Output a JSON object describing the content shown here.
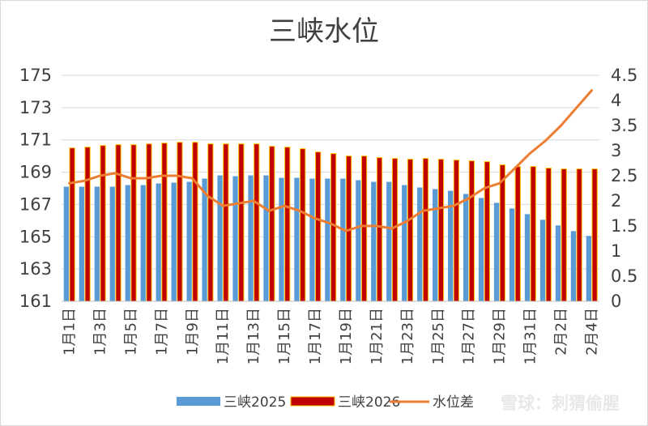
{
  "chart_data": {
    "type": "bar",
    "title": "三峡水位",
    "categories": [
      "1月1日",
      "1月2日",
      "1月3日",
      "1月4日",
      "1月5日",
      "1月6日",
      "1月7日",
      "1月8日",
      "1月9日",
      "1月10日",
      "1月11日",
      "1月12日",
      "1月13日",
      "1月14日",
      "1月15日",
      "1月16日",
      "1月17日",
      "1月18日",
      "1月19日",
      "1月20日",
      "1月21日",
      "1月22日",
      "1月23日",
      "1月24日",
      "1月25日",
      "1月26日",
      "1月27日",
      "1月28日",
      "1月29日",
      "1月30日",
      "1月31日",
      "2月1日",
      "2月2日",
      "2月3日",
      "2月4日"
    ],
    "tick_labels": [
      "1月1日",
      "1月3日",
      "1月5日",
      "1月7日",
      "1月9日",
      "1月11日",
      "1月13日",
      "1月15日",
      "1月17日",
      "1月19日",
      "1月21日",
      "1月23日",
      "1月25日",
      "1月27日",
      "1月29日",
      "1月31日",
      "2月2日",
      "2月4日"
    ],
    "y_left": {
      "ylim": [
        161,
        175
      ],
      "ticks": [
        "161",
        "163",
        "165",
        "167",
        "169",
        "171",
        "173",
        "175"
      ]
    },
    "y_right": {
      "ylim": [
        0,
        4.5
      ],
      "ticks": [
        "0",
        "0.5",
        "1",
        "1.5",
        "2",
        "2.5",
        "3",
        "3.5",
        "4",
        "4.5"
      ]
    },
    "grid": true,
    "legend_position": "bottom",
    "series": [
      {
        "name": "三峡2025",
        "kind": "bar",
        "axis": "left",
        "color": "#5b9bd5",
        "values": [
          168.1,
          168.1,
          168.1,
          168.1,
          168.2,
          168.2,
          168.3,
          168.35,
          168.4,
          168.6,
          168.8,
          168.75,
          168.8,
          168.8,
          168.65,
          168.65,
          168.6,
          168.6,
          168.6,
          168.5,
          168.4,
          168.4,
          168.2,
          168.05,
          167.95,
          167.85,
          167.65,
          167.4,
          167.1,
          166.75,
          166.4,
          166.05,
          165.7,
          165.35,
          165.05
        ]
      },
      {
        "name": "三峡2026",
        "kind": "bar",
        "axis": "left",
        "color": "#c00000",
        "edge": "#ffc000",
        "values": [
          170.5,
          170.55,
          170.65,
          170.7,
          170.7,
          170.75,
          170.8,
          170.85,
          170.85,
          170.75,
          170.75,
          170.75,
          170.75,
          170.6,
          170.55,
          170.45,
          170.25,
          170.15,
          170.0,
          170.0,
          169.9,
          169.85,
          169.8,
          169.85,
          169.8,
          169.75,
          169.7,
          169.65,
          169.45,
          169.35,
          169.35,
          169.25,
          169.2,
          169.2,
          169.2
        ]
      },
      {
        "name": "水位差",
        "kind": "line",
        "axis": "right",
        "color": "#ed7d31",
        "values": [
          2.35,
          2.4,
          2.5,
          2.55,
          2.45,
          2.45,
          2.5,
          2.5,
          2.45,
          2.1,
          1.9,
          1.95,
          2.0,
          1.8,
          1.9,
          1.8,
          1.65,
          1.55,
          1.4,
          1.5,
          1.5,
          1.45,
          1.6,
          1.8,
          1.85,
          1.9,
          2.05,
          2.25,
          2.35,
          2.65,
          2.95,
          3.2,
          3.5,
          3.85,
          4.2
        ]
      }
    ]
  },
  "watermark": "雪球：刺猬偷腥"
}
